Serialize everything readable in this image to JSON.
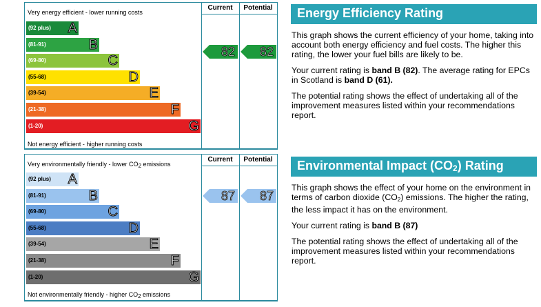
{
  "energy_chart": {
    "col_current": "Current",
    "col_potential": "Potential",
    "top_text": "Very energy efficient - lower running costs",
    "bottom_text": "Not energy efficient - higher running costs",
    "bands": [
      {
        "range": "(92 plus)",
        "letter": "A",
        "color": "#1a8a3a"
      },
      {
        "range": "(81-91)",
        "letter": "B",
        "color": "#2da343"
      },
      {
        "range": "(69-80)",
        "letter": "C",
        "color": "#8cc43c"
      },
      {
        "range": "(55-68)",
        "letter": "D",
        "color": "#ffe100"
      },
      {
        "range": "(39-54)",
        "letter": "E",
        "color": "#f5ad26"
      },
      {
        "range": "(21-38)",
        "letter": "F",
        "color": "#ee6a24"
      },
      {
        "range": "(1-20)",
        "letter": "G",
        "color": "#e31d23"
      }
    ],
    "current": "82",
    "potential": "82"
  },
  "env_chart": {
    "col_current": "Current",
    "col_potential": "Potential",
    "top_text_a": "Very environmentally friendly - lower CO",
    "top_text_sub": "2",
    "top_text_b": " emissions",
    "bottom_text_a": "Not environmentally friendly - higher CO",
    "bottom_text_sub": "2",
    "bottom_text_b": " emissions",
    "bands": [
      {
        "range": "(92 plus)",
        "letter": "A",
        "color": "#cfe3f6"
      },
      {
        "range": "(81-91)",
        "letter": "B",
        "color": "#9ac3ee"
      },
      {
        "range": "(69-80)",
        "letter": "C",
        "color": "#6ea3e0"
      },
      {
        "range": "(55-68)",
        "letter": "D",
        "color": "#4c7dc3"
      },
      {
        "range": "(39-54)",
        "letter": "E",
        "color": "#a6a6a6"
      },
      {
        "range": "(21-38)",
        "letter": "F",
        "color": "#8c8c8c"
      },
      {
        "range": "(1-20)",
        "letter": "G",
        "color": "#6e6e6e"
      }
    ],
    "current": "87",
    "potential": "87"
  },
  "energy_panel": {
    "title": "Energy Efficiency Rating",
    "p1": "This graph shows the current efficiency of your home, taking into account both energy efficiency and fuel costs. The higher this rating, the lower your fuel bills are likely to be.",
    "p2_a": "Your current rating is ",
    "p2_b": "band B (82)",
    "p2_c": ". The average rating for EPCs in Scotland is ",
    "p2_d": "band D (61).",
    "p3": "The potential rating shows the effect of undertaking all of the improvement measures listed within your recommendations report."
  },
  "env_panel": {
    "title_a": "Environmental Impact (CO",
    "title_sub": "2",
    "title_b": ") Rating",
    "p1_a": "This graph shows the effect of your home on the environment in terms of carbon dioxide (CO",
    "p1_sub": "2",
    "p1_b": ") emissions. The higher the rating, the less impact it has on the environment.",
    "p2_a": "Your current rating is ",
    "p2_b": "band B (87)",
    "p3": "The potential rating shows the effect of undertaking all of the improvement measures listed within your recommendations report."
  }
}
